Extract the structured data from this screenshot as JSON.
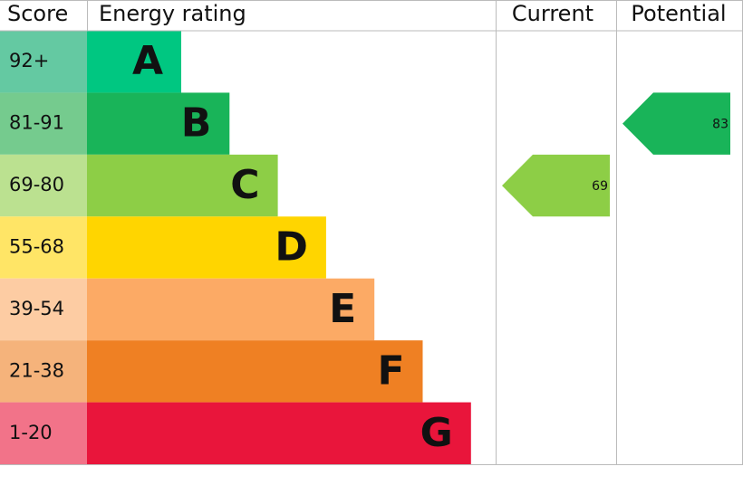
{
  "chart_data": {
    "type": "epc",
    "columns": [
      "Score",
      "Energy rating",
      "Current",
      "Potential"
    ],
    "bands": [
      {
        "score": "92+",
        "letter": "A",
        "color": "#00c781",
        "score_color": "#64c9a2"
      },
      {
        "score": "81-91",
        "letter": "B",
        "color": "#19b459",
        "score_color": "#75cb8e"
      },
      {
        "score": "69-80",
        "letter": "C",
        "color": "#8dce46",
        "score_color": "#bbe190"
      },
      {
        "score": "55-68",
        "letter": "D",
        "color": "#ffd500",
        "score_color": "#ffe566"
      },
      {
        "score": "39-54",
        "letter": "E",
        "color": "#fcaa65",
        "score_color": "#fdcca3"
      },
      {
        "score": "21-38",
        "letter": "F",
        "color": "#ef8023",
        "score_color": "#f5b37b"
      },
      {
        "score": "1-20",
        "letter": "G",
        "color": "#e9153b",
        "score_color": "#f27389"
      }
    ],
    "current": 69,
    "potential": 83
  }
}
